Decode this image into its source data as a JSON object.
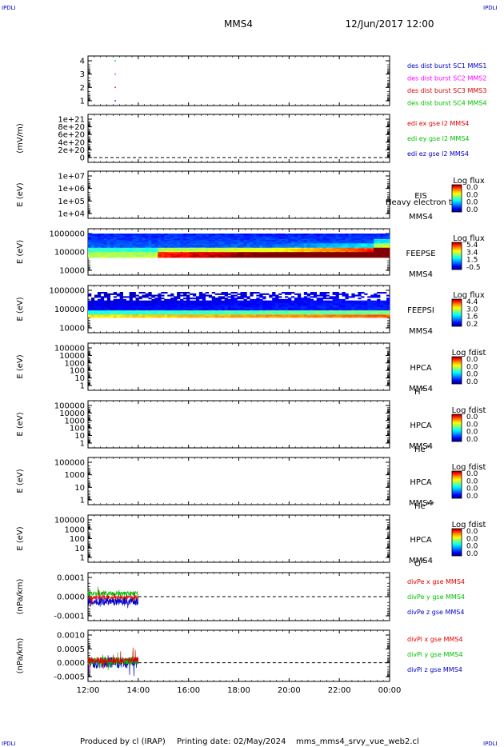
{
  "header": {
    "corner_tl": "IPDLI",
    "corner_tr": "IPDLI",
    "corner_bl": "IPDLI",
    "corner_br": "IPDLI",
    "spacecraft": "MMS4",
    "datetime": "12/Jun/2017 12:00"
  },
  "footer": {
    "produced_by": "Produced by cl (IRAP)",
    "printing_date": "Printing date: 02/May/2024",
    "filename": "mms_mms4_srvy_vue_web2.cl"
  },
  "chart_data": [
    {
      "id": "burst",
      "type": "scatter",
      "ylabel": "",
      "yticks": [
        "4",
        "3",
        "2",
        "1"
      ],
      "ylim": [
        0.5,
        4.5
      ],
      "points": [
        {
          "x": "13:05",
          "y": 4,
          "color": "#00a0a0"
        },
        {
          "x": "13:05",
          "y": 3,
          "color": "#ff00ff"
        },
        {
          "x": "13:05",
          "y": 2,
          "color": "#ff0000"
        },
        {
          "x": "13:05",
          "y": 1,
          "color": "#0000ff"
        }
      ],
      "legend": [
        {
          "text": "des dist burst SC1 MMS1",
          "color": "#0000c8"
        },
        {
          "text": "des dist burst SC2 MMS2",
          "color": "#ff00ff"
        },
        {
          "text": "des dist burst SC3 MMS3",
          "color": "#e00000"
        },
        {
          "text": "des dist burst SC4 MMS4",
          "color": "#00c000"
        }
      ]
    },
    {
      "id": "edi",
      "type": "line",
      "ylabel": "(mV/m)",
      "yticks": [
        "1e+21",
        "8e+20",
        "6e+20",
        "4e+20",
        "2e+20",
        "0"
      ],
      "legend": [
        {
          "text": "edi ex gse l2 MMS4",
          "color": "#e00000"
        },
        {
          "text": "edi ey gse l2 MMS4",
          "color": "#00c000"
        },
        {
          "text": "edi ez gse l2 MMS4",
          "color": "#0000c8"
        }
      ]
    },
    {
      "id": "eis",
      "type": "heatmap",
      "ylabel": "E (eV)",
      "yticks": [
        "1e+07",
        "1e+06",
        "1e+05",
        "1e+04"
      ],
      "instrument": "EIS",
      "instrument_overlay": "Heavy electron to",
      "spacecraft": "MMS4",
      "colorbar_title": "Log flux",
      "colorbar_ticks": [
        "0.0",
        "0.0",
        "0.0",
        "0.0"
      ]
    },
    {
      "id": "feepse",
      "type": "heatmap",
      "ylabel": "E (eV)",
      "yticks": [
        "1000000",
        "100000",
        "10000"
      ],
      "instrument": "FEEPSE",
      "spacecraft": "MMS4",
      "colorbar_title": "Log flux",
      "colorbar_ticks": [
        "5.4",
        "3.4",
        "1.5",
        "-0.5"
      ]
    },
    {
      "id": "feepsi",
      "type": "heatmap",
      "ylabel": "E (eV)",
      "yticks": [
        "1000000",
        "100000",
        "10000"
      ],
      "instrument": "FEEPSI",
      "spacecraft": "MMS4",
      "colorbar_title": "Log flux",
      "colorbar_ticks": [
        "4.4",
        "3.0",
        "1.6",
        "0.2"
      ]
    },
    {
      "id": "hpca_h",
      "type": "heatmap",
      "ylabel": "E (eV)",
      "yticks": [
        "100000",
        "10000",
        "1000",
        "100",
        "10",
        "1"
      ],
      "instrument": "HPCA",
      "spacecraft": "MMS4",
      "species": "H",
      "species_sup": "+",
      "colorbar_title": "Log fdist",
      "colorbar_ticks": [
        "0.0",
        "0.0",
        "0.0",
        "0.0"
      ]
    },
    {
      "id": "hpca_he",
      "type": "heatmap",
      "ylabel": "E (eV)",
      "yticks": [
        "100000",
        "10000",
        "1000",
        "100",
        "10",
        "1"
      ],
      "instrument": "HPCA",
      "spacecraft": "MMS4",
      "species": "He",
      "species_sup": "+",
      "colorbar_title": "Log fdist",
      "colorbar_ticks": [
        "0.0",
        "0.0",
        "0.0",
        "0.0"
      ]
    },
    {
      "id": "hpca_hepp",
      "type": "heatmap",
      "ylabel": "E (eV)",
      "yticks": [
        "100000",
        "1000",
        "10",
        "1"
      ],
      "instrument": "HPCA",
      "spacecraft": "MMS4",
      "species": "He",
      "species_sup": "++",
      "colorbar_title": "Log fdist",
      "colorbar_ticks": [
        "0.0",
        "0.0",
        "0.0",
        "0.0"
      ]
    },
    {
      "id": "hpca_o",
      "type": "heatmap",
      "ylabel": "E (eV)",
      "yticks": [
        "100000",
        "1000",
        "100",
        "10",
        "1"
      ],
      "instrument": "HPCA",
      "spacecraft": "MMS4",
      "species": "O",
      "species_sup": "+",
      "colorbar_title": "Log fdist",
      "colorbar_ticks": [
        "0.0",
        "0.0",
        "0.0",
        "0.0"
      ]
    },
    {
      "id": "divpe",
      "type": "line",
      "ylabel": "(nPa/km)",
      "yticks": [
        "0.0001",
        "0.0000",
        "-0.0001"
      ],
      "ylim": [
        -0.00015,
        0.00012
      ],
      "data_span": [
        "12:00",
        "14:00"
      ],
      "legend": [
        {
          "text": "divPe x gse MMS4",
          "color": "#e00000"
        },
        {
          "text": "divPe y gse MMS4",
          "color": "#00c000"
        },
        {
          "text": "divPe z gse MMS4",
          "color": "#0000c8"
        }
      ]
    },
    {
      "id": "divpi",
      "type": "line",
      "ylabel": "(nPa/km)",
      "yticks": [
        "0.0010",
        "0.0005",
        "0.0000",
        "-0.0005"
      ],
      "ylim": [
        -0.0008,
        0.0012
      ],
      "data_span": [
        "12:00",
        "14:00"
      ],
      "legend": [
        {
          "text": "divPi x gse MMS4",
          "color": "#e00000"
        },
        {
          "text": "divPi y gse MMS4",
          "color": "#00c000"
        },
        {
          "text": "divPi z gse MMS4",
          "color": "#0000c8"
        }
      ]
    }
  ],
  "xaxis": {
    "ticks": [
      "12:00",
      "14:00",
      "16:00",
      "18:00",
      "20:00",
      "22:00",
      "00:00"
    ]
  },
  "colors": {
    "jet": [
      "#000080",
      "#0000ff",
      "#0080ff",
      "#00ffff",
      "#80ff80",
      "#ffff00",
      "#ff8000",
      "#ff0000",
      "#800000"
    ]
  }
}
